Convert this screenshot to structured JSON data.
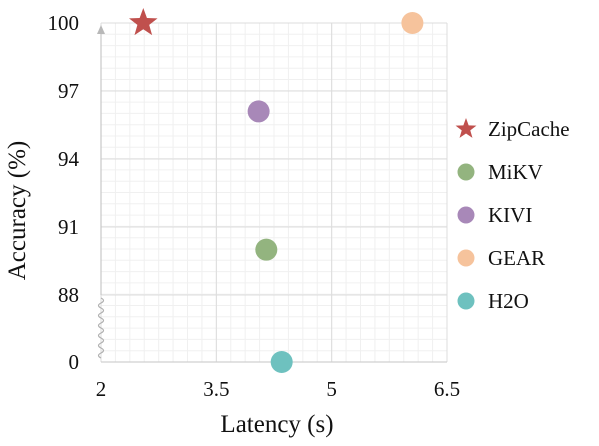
{
  "chart_data": {
    "type": "scatter",
    "title": "",
    "xlabel": "Latency (s)",
    "ylabel": "Accuracy (%)",
    "xlim": [
      2,
      6.5
    ],
    "x_ticks": [
      "2",
      "3.5",
      "5",
      "6.5"
    ],
    "y_ticks": [
      "0",
      "88",
      "91",
      "94",
      "97",
      "100"
    ],
    "y_axis_break": "between 0 and 88",
    "grid": true,
    "legend_position": "right",
    "series": [
      {
        "name": "ZipCache",
        "marker": "star",
        "color": "#c0504d",
        "x": 2.55,
        "y": 100.0
      },
      {
        "name": "MiKV",
        "marker": "circle",
        "color": "#93b47f",
        "x": 4.15,
        "y": 90.0
      },
      {
        "name": "KIVI",
        "marker": "circle",
        "color": "#a888b8",
        "x": 4.05,
        "y": 96.1
      },
      {
        "name": "GEAR",
        "marker": "circle",
        "color": "#f6c39c",
        "x": 6.05,
        "y": 100.0
      },
      {
        "name": "H2O",
        "marker": "circle",
        "color": "#6ec1bf",
        "x": 4.35,
        "y": 0.0
      }
    ]
  }
}
